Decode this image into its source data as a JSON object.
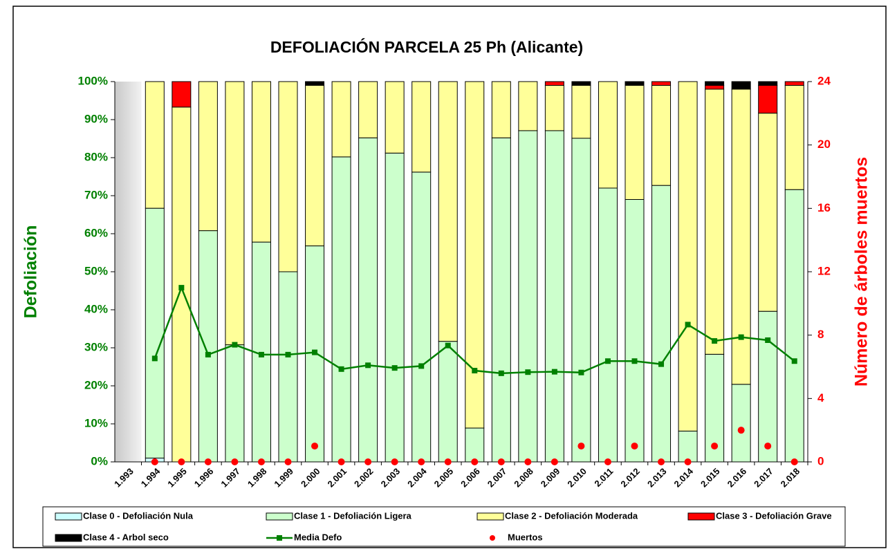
{
  "chart_data": {
    "type": "bar",
    "title": "DEFOLIACIÓN PARCELA 25 Ph (Alicante)",
    "y_label": "Defoliación",
    "y2_label": "Número de árboles muertos",
    "categories": [
      "1.993",
      "1.994",
      "1.995",
      "1.996",
      "1.997",
      "1.998",
      "1.999",
      "2.000",
      "2.001",
      "2.002",
      "2.003",
      "2.004",
      "2.005",
      "2.006",
      "2.007",
      "2.008",
      "2.009",
      "2.010",
      "2.011",
      "2.012",
      "2.013",
      "2.014",
      "2.015",
      "2.016",
      "2.017",
      "2.018"
    ],
    "ylim": [
      0,
      100
    ],
    "yticks": [
      {
        "value": 0,
        "label": "0%"
      },
      {
        "value": 10,
        "label": "10%"
      },
      {
        "value": 20,
        "label": "20%"
      },
      {
        "value": 30,
        "label": "30%"
      },
      {
        "value": 40,
        "label": "40%"
      },
      {
        "value": 50,
        "label": "50%"
      },
      {
        "value": 60,
        "label": "60%"
      },
      {
        "value": 70,
        "label": "70%"
      },
      {
        "value": 80,
        "label": "80%"
      },
      {
        "value": 90,
        "label": "90%"
      },
      {
        "value": 100,
        "label": "100%"
      }
    ],
    "y2lim": [
      0,
      24
    ],
    "y2ticks": [
      0,
      4,
      8,
      12,
      16,
      20,
      24
    ],
    "stacked": true,
    "series": [
      {
        "name": "Clase 0 - Defoliación Nula",
        "type": "bar",
        "color": "#ccffff",
        "values": [
          null,
          1,
          0,
          0,
          0,
          0,
          0,
          0,
          0,
          0,
          0,
          0,
          0,
          0,
          0,
          0,
          0,
          0,
          0,
          0,
          0,
          0,
          0,
          0,
          0,
          0
        ]
      },
      {
        "name": "Clase 1 - Defoliación Ligera",
        "type": "bar",
        "color": "#ccffcc",
        "values": [
          null,
          65.7,
          0,
          60.8,
          30.8,
          57.8,
          50,
          56.8,
          80.2,
          85.2,
          81.2,
          76.2,
          31.7,
          8.9,
          85.2,
          87.1,
          87.1,
          85.1,
          72,
          69,
          72.7,
          8.1,
          28.3,
          20.4,
          39.6,
          71.6
        ]
      },
      {
        "name": "Clase 2 - Defoliación Moderada",
        "type": "bar",
        "color": "#ffff99",
        "values": [
          null,
          33.3,
          93.3,
          39.2,
          69.2,
          42.2,
          50,
          42.2,
          19.8,
          14.8,
          18.8,
          23.8,
          68.3,
          91.1,
          14.8,
          12.9,
          11.9,
          13.9,
          28,
          30,
          26.3,
          91.9,
          69.7,
          77.6,
          52.1,
          27.4
        ]
      },
      {
        "name": "Clase 3 - Defoliación Grave",
        "type": "bar",
        "color": "#ff0000",
        "values": [
          null,
          0,
          6.7,
          0,
          0,
          0,
          0,
          0,
          0,
          0,
          0,
          0,
          0,
          0,
          0,
          0,
          1,
          0,
          0,
          0,
          1,
          0,
          1,
          0,
          7.3,
          1
        ]
      },
      {
        "name": "Clase 4 - Arbol seco",
        "type": "bar",
        "color": "#000000",
        "values": [
          null,
          0,
          0,
          0,
          0,
          0,
          0,
          1,
          0,
          0,
          0,
          0,
          0,
          0,
          0,
          0,
          0,
          1,
          0,
          1,
          0,
          0,
          1,
          2,
          1,
          0
        ]
      },
      {
        "name": "Media Defo",
        "type": "line",
        "color": "#008000",
        "values": [
          null,
          27.2,
          45.8,
          28.2,
          30.8,
          28.2,
          28.2,
          28.8,
          24.4,
          25.4,
          24.7,
          25.2,
          30.6,
          24,
          23.3,
          23.6,
          23.7,
          23.5,
          26.5,
          26.5,
          25.7,
          36.1,
          31.8,
          32.8,
          32,
          26.5
        ]
      },
      {
        "name": "Muertos",
        "type": "scatter",
        "color": "#ff0000",
        "axis": "y2",
        "values": [
          null,
          0,
          0,
          0,
          0,
          0,
          0,
          1,
          0,
          0,
          0,
          0,
          0,
          0,
          0,
          0,
          0,
          1,
          0,
          1,
          0,
          0,
          1,
          2,
          1,
          0
        ]
      }
    ],
    "y_color": "#008000",
    "y2_color": "#ff0000"
  }
}
